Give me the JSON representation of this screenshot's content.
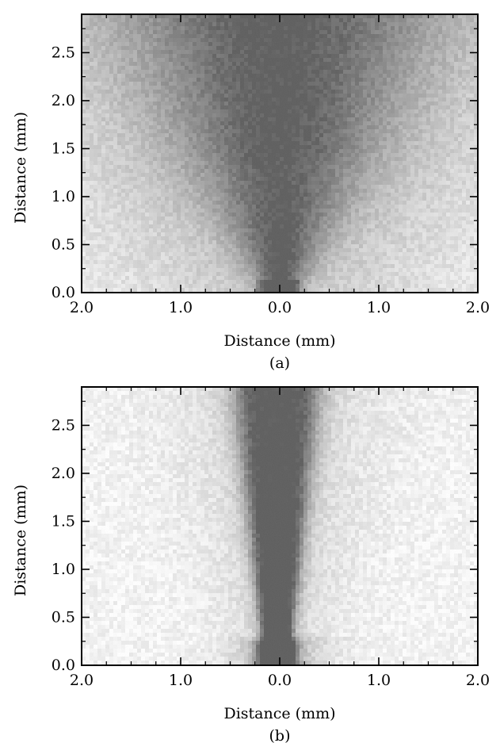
{
  "chart_data": [
    {
      "type": "heatmap",
      "panel": "(a)",
      "xlabel": "Distance (mm)",
      "ylabel": "Distance (mm)",
      "xlim": [
        -2.0,
        2.0
      ],
      "ylim": [
        0.0,
        2.9
      ],
      "x_ticks": [
        -2.0,
        -1.0,
        0.0,
        1.0,
        2.0
      ],
      "x_tick_labels": [
        "2.0",
        "1.0",
        "0.0",
        "1.0",
        "2.0"
      ],
      "y_ticks": [
        0.0,
        0.5,
        1.0,
        1.5,
        2.0,
        2.5
      ],
      "y_tick_labels": [
        "0.0",
        "0.5",
        "1.0",
        "1.5",
        "2.0",
        "2.5"
      ],
      "grid": false,
      "colormap": "grayscale (dark = high density)",
      "spray": {
        "kind": "wide-cone",
        "nozzle_x": 0.0,
        "nozzle_halfwidth": 0.2,
        "spread_per_mm": 0.55
      }
    },
    {
      "type": "heatmap",
      "panel": "(b)",
      "xlabel": "Distance (mm)",
      "ylabel": "Distance (mm)",
      "xlim": [
        -2.0,
        2.0
      ],
      "ylim": [
        0.0,
        2.9
      ],
      "x_ticks": [
        -2.0,
        -1.0,
        0.0,
        1.0,
        2.0
      ],
      "x_tick_labels": [
        "2.0",
        "1.0",
        "0.0",
        "1.0",
        "2.0"
      ],
      "y_ticks": [
        0.0,
        0.5,
        1.0,
        1.5,
        2.0,
        2.5
      ],
      "y_tick_labels": [
        "0.0",
        "0.5",
        "1.0",
        "1.5",
        "2.0",
        "2.5"
      ],
      "grid": false,
      "colormap": "grayscale (dark = high density)",
      "spray": {
        "kind": "narrow-jet",
        "nozzle_x": 0.0,
        "nozzle_halfwidth": 0.2,
        "spread_per_mm": 0.05
      }
    }
  ]
}
